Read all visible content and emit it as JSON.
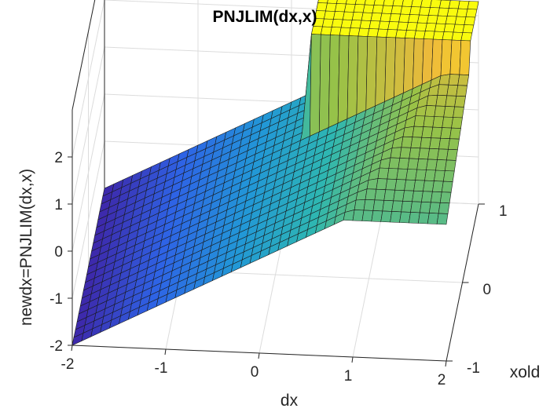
{
  "chart_data": {
    "type": "surface",
    "title": "PNJLIM(dx,x)",
    "xlabel": "dx",
    "ylabel": "xold",
    "zlabel": "newdx=PNJLIM(dx,x)",
    "x_ticks": [
      "-2",
      "-1",
      "0",
      "1",
      "2"
    ],
    "y_ticks": [
      "-1",
      "0",
      "1"
    ],
    "z_ticks": [
      "-2",
      "-1",
      "0",
      "1",
      "2"
    ],
    "xlim": [
      -2,
      2
    ],
    "ylim": [
      -1,
      1
    ],
    "zlim": [
      -2,
      3
    ],
    "grid": true,
    "colormap": "parula",
    "surface": {
      "dx_range": [
        -2,
        2
      ],
      "xold_range": [
        -1,
        1
      ],
      "grid_size": [
        41,
        21
      ],
      "function": "newdx = dx for dx below the step limit; for larger dx the value saturates at a plateau that grows with xold, with the saturated region jumping to about 2.3 at the highest xold values"
    },
    "colors": {
      "low": "#3e26a8",
      "mid": "#2eb7b1",
      "high": "#f9fb0e",
      "edge": "#1a1a1a",
      "axis": "#262626",
      "grid": "#dcdcdc"
    }
  }
}
